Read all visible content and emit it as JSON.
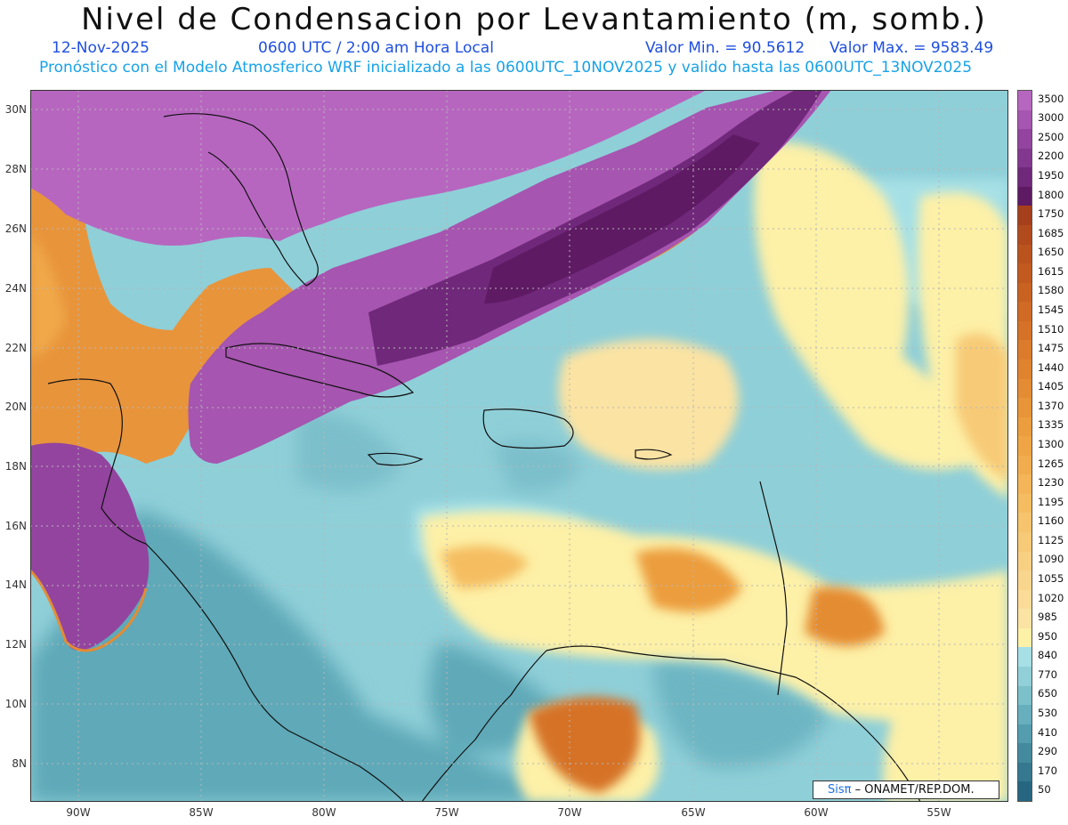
{
  "header": {
    "title": "Nivel de Condensacion por Levantamiento (m, somb.)",
    "date": "12-Nov-2025",
    "time": "0600 UTC / 2:00 am Hora Local",
    "min_label": "Valor Min. = 90.5612",
    "max_label": "Valor Max. = 9583.49",
    "forecast_line": "Pronóstico con el Modelo Atmosferico WRF inicializado a las 0600UTC_10NOV2025 y valido hasta las  0600UTC_13NOV2025"
  },
  "axes": {
    "latitudes": [
      "30N",
      "28N",
      "26N",
      "24N",
      "22N",
      "20N",
      "18N",
      "16N",
      "14N",
      "12N",
      "10N",
      "8N"
    ],
    "longitudes": [
      "90W",
      "85W",
      "80W",
      "75W",
      "70W",
      "65W",
      "60W",
      "55W"
    ]
  },
  "legend": {
    "levels": [
      "3500",
      "3000",
      "2500",
      "2200",
      "1950",
      "1800",
      "1750",
      "1685",
      "1650",
      "1615",
      "1580",
      "1545",
      "1510",
      "1475",
      "1440",
      "1405",
      "1370",
      "1335",
      "1300",
      "1265",
      "1230",
      "1195",
      "1160",
      "1125",
      "1090",
      "1055",
      "1020",
      "985",
      "950",
      "840",
      "770",
      "650",
      "530",
      "410",
      "290",
      "170",
      "50"
    ],
    "colors": [
      "#b766c0",
      "#a655b0",
      "#93449f",
      "#83388f",
      "#70287a",
      "#5e1a63",
      "#a63f1b",
      "#b14a1c",
      "#ba531d",
      "#c2591e",
      "#c96221",
      "#d06a24",
      "#d57227",
      "#db7b2b",
      "#e0832f",
      "#e48c33",
      "#e89438",
      "#ec9d3e",
      "#efa545",
      "#f1ad4d",
      "#f3b557",
      "#f5bd61",
      "#f6c46c",
      "#f7ca77",
      "#f8d082",
      "#f9d68d",
      "#fadc98",
      "#fbe3a3",
      "#fdf0a7",
      "#a6e0e6",
      "#91d0d8",
      "#7cc0ca",
      "#67afbc",
      "#549dae",
      "#448a9e",
      "#35788f",
      "#276680"
    ]
  },
  "credit": {
    "logo": "Sisπ",
    "text": "– ONAMET/REP.DOM."
  }
}
